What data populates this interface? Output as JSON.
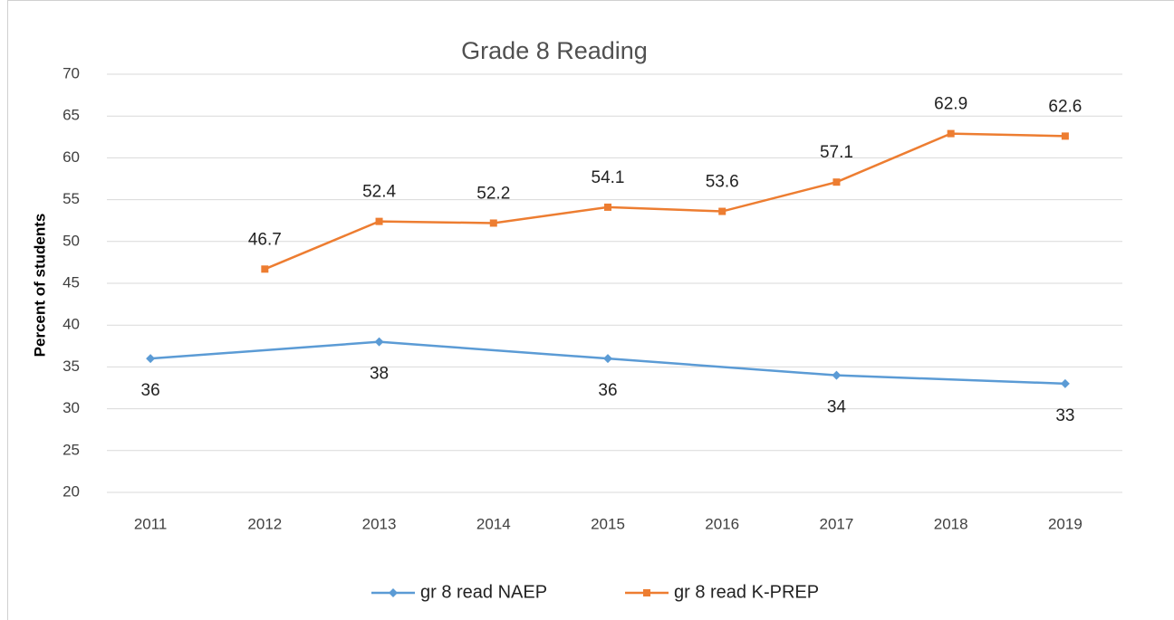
{
  "chart_data": {
    "type": "line",
    "title": "Grade 8 Reading",
    "y_label": "Percent of students",
    "xlim": [
      2010.5,
      2019.5
    ],
    "xticks": [
      2011,
      2012,
      2013,
      2014,
      2015,
      2016,
      2017,
      2018,
      2019
    ],
    "ylim": [
      20,
      70
    ],
    "yticks": [
      20,
      25,
      30,
      35,
      40,
      45,
      50,
      55,
      60,
      65,
      70
    ],
    "grid": true,
    "legend": "bottom",
    "series": [
      {
        "name": "gr 8 read NAEP",
        "color": "#5b9bd5",
        "marker": "diamond",
        "label_position": "below",
        "x": [
          2011,
          2013,
          2015,
          2017,
          2019
        ],
        "values": [
          36,
          38,
          36,
          34,
          33
        ]
      },
      {
        "name": "gr 8 read K-PREP",
        "color": "#ed7d31",
        "marker": "square",
        "label_position": "above",
        "x": [
          2012,
          2013,
          2014,
          2015,
          2016,
          2017,
          2018,
          2019
        ],
        "values": [
          46.7,
          52.4,
          52.2,
          54.1,
          53.6,
          57.1,
          62.9,
          62.6
        ]
      }
    ]
  }
}
